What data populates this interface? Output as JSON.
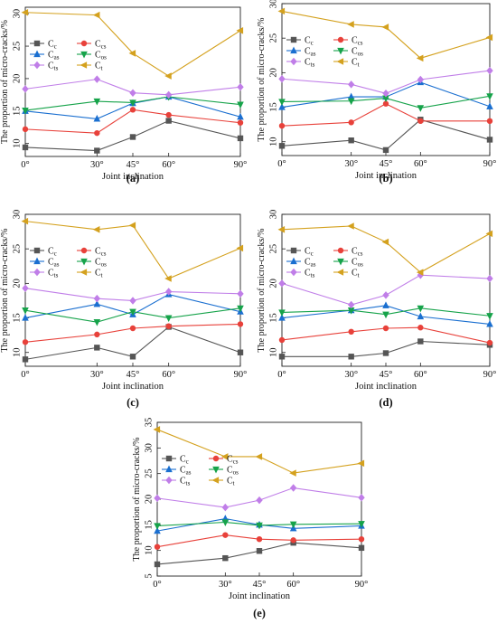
{
  "chart_data": [
    {
      "type": "line",
      "panel_label": "(a)",
      "xlabel": "Joint inclination",
      "ylabel": "The proportion of micro-cracks/%",
      "x": [
        "0°",
        "30°",
        "45°",
        "60°",
        "90°"
      ],
      "ylim": [
        8,
        31
      ],
      "yticks": [
        10,
        15,
        20,
        25,
        30
      ],
      "legend_position": "upper-left",
      "series": [
        {
          "key": "Cc",
          "name": "C",
          "sub": "c",
          "color": "#555555",
          "marker": "square",
          "values": [
            9.4,
            8.9,
            11.0,
            13.5,
            10.8
          ]
        },
        {
          "key": "Ccs",
          "name": "C",
          "sub": "cs",
          "color": "#e8413a",
          "marker": "circle",
          "values": [
            12.2,
            11.6,
            15.2,
            14.4,
            13.2
          ]
        },
        {
          "key": "Cas",
          "name": "C",
          "sub": "as",
          "color": "#1a6fd0",
          "marker": "triangle-up",
          "values": [
            15.0,
            13.8,
            16.2,
            17.2,
            14.1
          ]
        },
        {
          "key": "Cos",
          "name": "C",
          "sub": "os",
          "color": "#16a34a",
          "marker": "triangle-down",
          "values": [
            15.1,
            16.5,
            16.3,
            17.2,
            16.0
          ]
        },
        {
          "key": "Cts",
          "name": "C",
          "sub": "ts",
          "color": "#c07ee8",
          "marker": "diamond",
          "values": [
            18.4,
            19.9,
            17.8,
            17.5,
            18.7
          ]
        },
        {
          "key": "Ct",
          "name": "C",
          "sub": "t",
          "color": "#d4a11e",
          "marker": "triangle-left",
          "values": [
            30.2,
            29.8,
            23.9,
            20.4,
            27.4
          ]
        }
      ]
    },
    {
      "type": "line",
      "panel_label": "(b)",
      "xlabel": "Joint inclination",
      "ylabel": "The proportion of micro-cracks/%",
      "x": [
        "0°",
        "30°",
        "45°",
        "60°",
        "90°"
      ],
      "ylim": [
        8,
        30
      ],
      "yticks": [
        10,
        15,
        20,
        25,
        30
      ],
      "legend_position": "upper-left",
      "series": [
        {
          "key": "Cc",
          "name": "C",
          "sub": "c",
          "color": "#555555",
          "marker": "square",
          "values": [
            9.4,
            10.2,
            8.8,
            13.2,
            10.3
          ]
        },
        {
          "key": "Ccs",
          "name": "C",
          "sub": "cs",
          "color": "#e8413a",
          "marker": "circle",
          "values": [
            12.3,
            12.8,
            15.5,
            13.0,
            13.0
          ]
        },
        {
          "key": "Cas",
          "name": "C",
          "sub": "as",
          "color": "#1a6fd0",
          "marker": "triangle-up",
          "values": [
            15.0,
            16.5,
            16.5,
            18.6,
            15.1
          ]
        },
        {
          "key": "Cos",
          "name": "C",
          "sub": "os",
          "color": "#16a34a",
          "marker": "triangle-down",
          "values": [
            15.8,
            15.9,
            16.3,
            14.9,
            16.6
          ]
        },
        {
          "key": "Cts",
          "name": "C",
          "sub": "ts",
          "color": "#c07ee8",
          "marker": "diamond",
          "values": [
            19.1,
            18.3,
            17.0,
            19.0,
            20.3
          ]
        },
        {
          "key": "Ct",
          "name": "C",
          "sub": "t",
          "color": "#d4a11e",
          "marker": "triangle-left",
          "values": [
            28.9,
            27.0,
            26.6,
            22.1,
            25.1
          ]
        }
      ]
    },
    {
      "type": "line",
      "panel_label": "(c)",
      "xlabel": "Joint inclination",
      "ylabel": "The proportion of micro-cracks/%",
      "x": [
        "0°",
        "30°",
        "45°",
        "60°",
        "90°"
      ],
      "ylim": [
        8,
        30
      ],
      "yticks": [
        10,
        15,
        20,
        25,
        30
      ],
      "legend_position": "upper-left",
      "series": [
        {
          "key": "Cc",
          "name": "C",
          "sub": "c",
          "color": "#555555",
          "marker": "square",
          "values": [
            9.0,
            10.7,
            9.4,
            13.7,
            10.0
          ]
        },
        {
          "key": "Ccs",
          "name": "C",
          "sub": "cs",
          "color": "#e8413a",
          "marker": "circle",
          "values": [
            11.5,
            12.6,
            13.5,
            13.8,
            14.1
          ]
        },
        {
          "key": "Cas",
          "name": "C",
          "sub": "as",
          "color": "#1a6fd0",
          "marker": "triangle-up",
          "values": [
            15.0,
            17.0,
            15.5,
            18.4,
            15.9
          ]
        },
        {
          "key": "Cos",
          "name": "C",
          "sub": "os",
          "color": "#16a34a",
          "marker": "triangle-down",
          "values": [
            16.1,
            14.4,
            15.9,
            15.0,
            16.4
          ]
        },
        {
          "key": "Cts",
          "name": "C",
          "sub": "ts",
          "color": "#c07ee8",
          "marker": "diamond",
          "values": [
            19.3,
            17.8,
            17.5,
            18.8,
            18.5
          ]
        },
        {
          "key": "Ct",
          "name": "C",
          "sub": "t",
          "color": "#d4a11e",
          "marker": "triangle-left",
          "values": [
            29.0,
            27.8,
            28.4,
            20.7,
            25.1
          ]
        }
      ]
    },
    {
      "type": "line",
      "panel_label": "(d)",
      "xlabel": "Joint inclination",
      "ylabel": "The proportion of micro-cracks/%",
      "x": [
        "0°",
        "30°",
        "45°",
        "60°",
        "90°"
      ],
      "ylim": [
        8,
        30
      ],
      "yticks": [
        10,
        15,
        20,
        25,
        30
      ],
      "legend_position": "upper-left",
      "series": [
        {
          "key": "Cc",
          "name": "C",
          "sub": "c",
          "color": "#555555",
          "marker": "square",
          "values": [
            9.4,
            9.4,
            9.9,
            11.6,
            11.1
          ]
        },
        {
          "key": "Ccs",
          "name": "C",
          "sub": "cs",
          "color": "#e8413a",
          "marker": "circle",
          "values": [
            11.8,
            13.0,
            13.5,
            13.6,
            11.4
          ]
        },
        {
          "key": "Cas",
          "name": "C",
          "sub": "as",
          "color": "#1a6fd0",
          "marker": "triangle-up",
          "values": [
            15.0,
            16.1,
            16.8,
            15.2,
            14.1
          ]
        },
        {
          "key": "Cos",
          "name": "C",
          "sub": "os",
          "color": "#16a34a",
          "marker": "triangle-down",
          "values": [
            15.8,
            16.1,
            15.5,
            16.4,
            15.3
          ]
        },
        {
          "key": "Cts",
          "name": "C",
          "sub": "ts",
          "color": "#c07ee8",
          "marker": "diamond",
          "values": [
            20.0,
            16.9,
            18.3,
            21.2,
            20.7
          ]
        },
        {
          "key": "Ct",
          "name": "C",
          "sub": "t",
          "color": "#d4a11e",
          "marker": "triangle-left",
          "values": [
            27.8,
            28.3,
            26.0,
            21.6,
            27.2
          ]
        }
      ]
    },
    {
      "type": "line",
      "panel_label": "(e)",
      "xlabel": "Joint inclination",
      "ylabel": "The proportion of micro-cracks/%",
      "x": [
        "0°",
        "30°",
        "45°",
        "60°",
        "90°"
      ],
      "ylim": [
        5,
        35
      ],
      "yticks": [
        5,
        10,
        15,
        20,
        25,
        30,
        35
      ],
      "legend_position": "upper-left",
      "series": [
        {
          "key": "Cc",
          "name": "C",
          "sub": "c",
          "color": "#555555",
          "marker": "square",
          "values": [
            7.3,
            8.5,
            9.9,
            11.5,
            10.5
          ]
        },
        {
          "key": "Ccs",
          "name": "C",
          "sub": "cs",
          "color": "#e8413a",
          "marker": "circle",
          "values": [
            10.7,
            13.0,
            12.2,
            12.0,
            12.2
          ]
        },
        {
          "key": "Cas",
          "name": "C",
          "sub": "as",
          "color": "#1a6fd0",
          "marker": "triangle-up",
          "values": [
            13.8,
            16.2,
            15.0,
            14.3,
            14.8
          ]
        },
        {
          "key": "Cos",
          "name": "C",
          "sub": "os",
          "color": "#16a34a",
          "marker": "triangle-down",
          "values": [
            14.8,
            15.5,
            14.9,
            15.1,
            15.2
          ]
        },
        {
          "key": "Cts",
          "name": "C",
          "sub": "ts",
          "color": "#c07ee8",
          "marker": "diamond",
          "values": [
            20.2,
            18.4,
            19.8,
            22.2,
            20.3
          ]
        },
        {
          "key": "Ct",
          "name": "C",
          "sub": "t",
          "color": "#d4a11e",
          "marker": "triangle-left",
          "values": [
            33.6,
            28.3,
            28.3,
            25.1,
            27.0
          ]
        }
      ]
    }
  ]
}
